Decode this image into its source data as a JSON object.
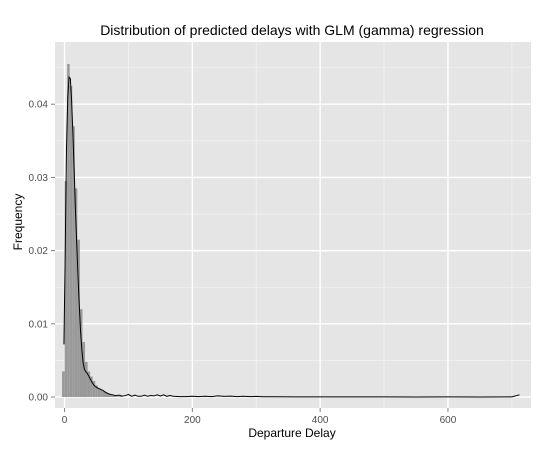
{
  "chart_data": {
    "type": "histogram-density",
    "title": "Distribution of predicted delays with GLM (gamma) regression",
    "xlabel": "Departure Delay",
    "ylabel": "Frequency",
    "xlim": [
      -15,
      730
    ],
    "ylim": [
      -0.0015,
      0.0485
    ],
    "x_ticks": [
      0,
      200,
      400,
      600
    ],
    "y_ticks": [
      0.0,
      0.01,
      0.02,
      0.03,
      0.04
    ],
    "y_tick_labels": [
      "0.00",
      "0.01",
      "0.02",
      "0.03",
      "0.04"
    ],
    "grid": true,
    "panel_color": "#e5e5e5",
    "bar_color": "#999999",
    "line_color": "#000000",
    "histogram": {
      "bin_width": 4,
      "bins": [
        {
          "x0": -4,
          "x1": 0,
          "y": 0.0035
        },
        {
          "x0": 0,
          "x1": 4,
          "y": 0.0295
        },
        {
          "x0": 4,
          "x1": 8,
          "y": 0.0455
        },
        {
          "x0": 8,
          "x1": 12,
          "y": 0.0425
        },
        {
          "x0": 12,
          "x1": 16,
          "y": 0.037
        },
        {
          "x0": 16,
          "x1": 20,
          "y": 0.0285
        },
        {
          "x0": 20,
          "x1": 24,
          "y": 0.0215
        },
        {
          "x0": 24,
          "x1": 28,
          "y": 0.012
        },
        {
          "x0": 28,
          "x1": 32,
          "y": 0.0075
        },
        {
          "x0": 32,
          "x1": 36,
          "y": 0.0048
        },
        {
          "x0": 36,
          "x1": 40,
          "y": 0.0035
        },
        {
          "x0": 40,
          "x1": 44,
          "y": 0.0028
        },
        {
          "x0": 44,
          "x1": 48,
          "y": 0.0022
        },
        {
          "x0": 48,
          "x1": 52,
          "y": 0.0016
        },
        {
          "x0": 52,
          "x1": 56,
          "y": 0.0012
        },
        {
          "x0": 56,
          "x1": 60,
          "y": 0.001
        },
        {
          "x0": 60,
          "x1": 64,
          "y": 0.0008
        },
        {
          "x0": 64,
          "x1": 68,
          "y": 0.0006
        },
        {
          "x0": 68,
          "x1": 72,
          "y": 0.0004
        },
        {
          "x0": 72,
          "x1": 76,
          "y": 0.0003
        },
        {
          "x0": 76,
          "x1": 80,
          "y": 0.0002
        },
        {
          "x0": 80,
          "x1": 90,
          "y": 0.0001
        }
      ]
    },
    "density": {
      "x": [
        -1,
        1,
        3,
        5,
        7,
        9,
        11,
        13,
        15,
        17,
        19,
        21,
        23,
        25,
        27,
        29,
        31,
        33,
        35,
        37,
        40,
        43,
        46,
        50,
        55,
        60,
        65,
        70,
        75,
        80,
        85,
        90,
        95,
        100,
        105,
        110,
        115,
        120,
        125,
        130,
        135,
        140,
        145,
        150,
        155,
        160,
        165,
        170,
        180,
        190,
        200,
        210,
        220,
        230,
        240,
        250,
        260,
        270,
        280,
        290,
        300,
        310,
        330,
        360,
        400,
        450,
        500,
        550,
        600,
        650,
        700,
        712
      ],
      "y": [
        0.0072,
        0.02,
        0.034,
        0.041,
        0.0437,
        0.0435,
        0.0405,
        0.036,
        0.031,
        0.0255,
        0.021,
        0.0165,
        0.0125,
        0.009,
        0.0065,
        0.0047,
        0.0038,
        0.0035,
        0.0033,
        0.003,
        0.0025,
        0.002,
        0.0016,
        0.0013,
        0.0011,
        0.0009,
        0.0006,
        0.0004,
        0.0003,
        0.0002,
        0.00025,
        0.00012,
        0.0002,
        0.00035,
        0.0001,
        0.00025,
        0.0001,
        0.0001,
        0.00025,
        0.0001,
        0.0002,
        0.00015,
        0.0003,
        0.00012,
        0.0003,
        0.0001,
        0.0002,
        0.0001,
        5e-05,
        5e-05,
        0.0001,
        5e-05,
        0.0001,
        5e-05,
        0.00015,
        8e-05,
        0.00012,
        6e-05,
        0.0001,
        5e-05,
        8e-05,
        4e-05,
        3e-05,
        2e-05,
        2e-05,
        2e-05,
        2e-05,
        1e-05,
        2e-05,
        1e-05,
        2e-05,
        0.0003
      ]
    }
  }
}
